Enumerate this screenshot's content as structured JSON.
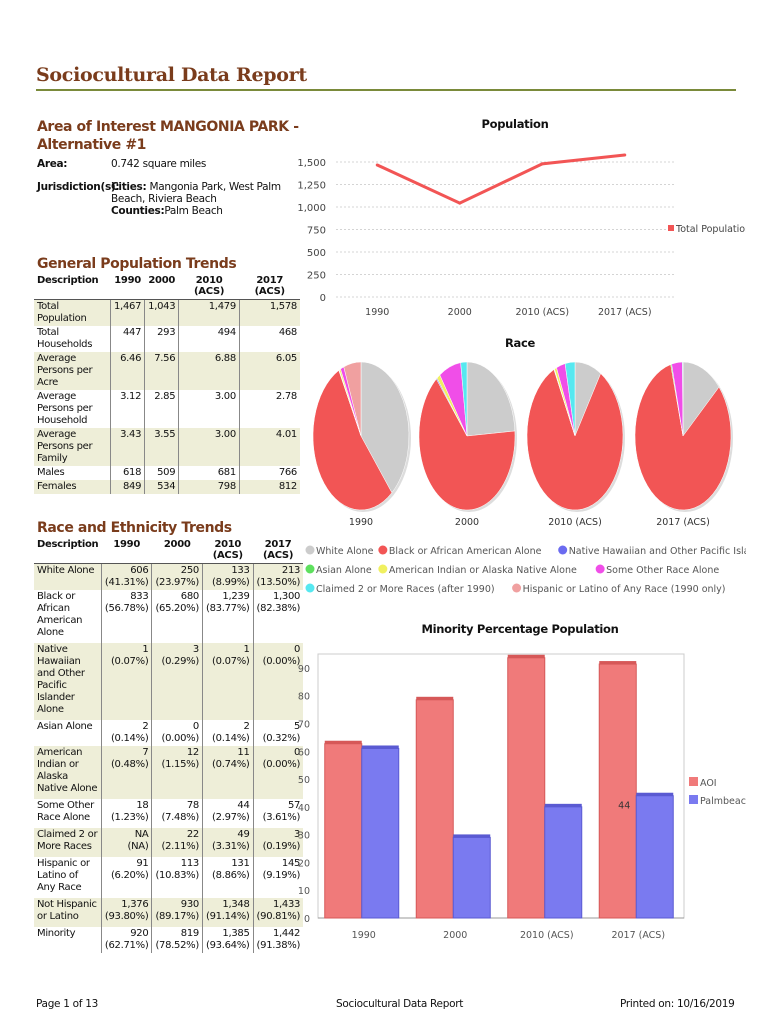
{
  "title": "Sociocultural Data Report",
  "area_of_interest": {
    "heading": "Area of Interest MANGONIA PARK - Alternative #1",
    "area_label": "Area:",
    "area_value": "0.742 square miles",
    "jurisdiction_label": "Jurisdiction(s):",
    "cities_label": "Cities:",
    "cities_value": "Mangonia Park, West Palm Beach, Riviera Beach",
    "counties_label": "Counties:",
    "counties_value": "Palm Beach"
  },
  "general": {
    "heading": "General Population Trends",
    "columns": [
      "Description",
      "1990",
      "2000",
      "2010 (ACS)",
      "2017 (ACS)"
    ],
    "rows": [
      {
        "label": "Total Population",
        "values": [
          "1,467",
          "1,043",
          "1,479",
          "1,578"
        ]
      },
      {
        "label": "Total Households",
        "values": [
          "447",
          "293",
          "494",
          "468"
        ]
      },
      {
        "label": "Average Persons per Acre",
        "values": [
          "6.46",
          "7.56",
          "6.88",
          "6.05"
        ]
      },
      {
        "label": "Average Persons per Household",
        "values": [
          "3.12",
          "2.85",
          "3.00",
          "2.78"
        ]
      },
      {
        "label": "Average Persons per Family",
        "values": [
          "3.43",
          "3.55",
          "3.00",
          "4.01"
        ]
      },
      {
        "label": "Males",
        "values": [
          "618",
          "509",
          "681",
          "766"
        ]
      },
      {
        "label": "Females",
        "values": [
          "849",
          "534",
          "798",
          "812"
        ]
      }
    ]
  },
  "race": {
    "heading": "Race and Ethnicity Trends",
    "columns": [
      "Description",
      "1990",
      "2000",
      "2010 (ACS)",
      "2017 (ACS)"
    ],
    "rows": [
      {
        "label": "White Alone",
        "values": [
          [
            "606",
            "(41.31%)"
          ],
          [
            "250",
            "(23.97%)"
          ],
          [
            "133",
            "(8.99%)"
          ],
          [
            "213",
            "(13.50%)"
          ]
        ]
      },
      {
        "label": "Black or African American Alone",
        "values": [
          [
            "833",
            "(56.78%)"
          ],
          [
            "680",
            "(65.20%)"
          ],
          [
            "1,239",
            "(83.77%)"
          ],
          [
            "1,300",
            "(82.38%)"
          ]
        ]
      },
      {
        "label": "Native Hawaiian and Other Pacific Islander Alone",
        "values": [
          [
            "1",
            "(0.07%)"
          ],
          [
            "3",
            "(0.29%)"
          ],
          [
            "1",
            "(0.07%)"
          ],
          [
            "0",
            "(0.00%)"
          ]
        ]
      },
      {
        "label": "Asian Alone",
        "values": [
          [
            "2",
            "(0.14%)"
          ],
          [
            "0",
            "(0.00%)"
          ],
          [
            "2",
            "(0.14%)"
          ],
          [
            "5",
            "(0.32%)"
          ]
        ]
      },
      {
        "label": "American Indian or Alaska Native Alone",
        "values": [
          [
            "7",
            "(0.48%)"
          ],
          [
            "12",
            "(1.15%)"
          ],
          [
            "11",
            "(0.74%)"
          ],
          [
            "0",
            "(0.00%)"
          ]
        ]
      },
      {
        "label": "Some Other Race Alone",
        "values": [
          [
            "18",
            "(1.23%)"
          ],
          [
            "78",
            "(7.48%)"
          ],
          [
            "44",
            "(2.97%)"
          ],
          [
            "57",
            "(3.61%)"
          ]
        ]
      },
      {
        "label": "Claimed 2 or More Races",
        "values": [
          [
            "NA",
            "(NA)"
          ],
          [
            "22",
            "(2.11%)"
          ],
          [
            "49",
            "(3.31%)"
          ],
          [
            "3",
            "(0.19%)"
          ]
        ]
      },
      {
        "label": "Hispanic or Latino of Any Race",
        "values": [
          [
            "91",
            "(6.20%)"
          ],
          [
            "113",
            "(10.83%)"
          ],
          [
            "131",
            "(8.86%)"
          ],
          [
            "145",
            "(9.19%)"
          ]
        ]
      },
      {
        "label": "Not Hispanic or Latino",
        "values": [
          [
            "1,376",
            "(93.80%)"
          ],
          [
            "930",
            "(89.17%)"
          ],
          [
            "1,348",
            "(91.14%)"
          ],
          [
            "1,433",
            "(90.81%)"
          ]
        ]
      },
      {
        "label": "Minority",
        "values": [
          [
            "920",
            "(62.71%)"
          ],
          [
            "819",
            "(78.52%)"
          ],
          [
            "1,385",
            "(93.64%)"
          ],
          [
            "1,442",
            "(91.38%)"
          ]
        ]
      }
    ]
  },
  "colors": {
    "accent": "#7a3c1c",
    "rule": "#7a8a3a",
    "shade": "#eeeed8",
    "white_alone": "#cccccc",
    "black_alone": "#f25555",
    "native_hawaiian": "#6b6bf0",
    "asian": "#5ee05e",
    "american_indian": "#f0f060",
    "other_race": "#f04ee8",
    "two_or_more": "#56e8f0",
    "hispanic": "#f0a0a0",
    "aoi_bar": "#f07a7a",
    "palmbeach_bar": "#7a7af0"
  },
  "chart_data": [
    {
      "type": "line",
      "title": "Population",
      "categories": [
        "1990",
        "2000",
        "2010 (ACS)",
        "2017 (ACS)"
      ],
      "series": [
        {
          "name": "Total Population",
          "values": [
            1467,
            1043,
            1479,
            1578
          ]
        }
      ],
      "yticks": [
        "0",
        "250",
        "500",
        "750",
        "1,000",
        "1,250",
        "1,500"
      ],
      "ylim": [
        0,
        1600
      ],
      "legend": "right"
    },
    {
      "type": "pie",
      "title": "Race",
      "categories": [
        "1990",
        "2000",
        "2010 (ACS)",
        "2017 (ACS)"
      ],
      "legend_entries": [
        "White Alone",
        "Black or African American Alone",
        "Native Hawaiian and Other Pacific Islander Alone",
        "Asian Alone",
        "American Indian or Alaska Native Alone",
        "Some Other Race Alone",
        "Claimed 2 or More Races (after 1990)",
        "Hispanic or Latino of Any Race (1990 only)"
      ],
      "pies": [
        {
          "label": "1990",
          "slices": [
            41.31,
            56.78,
            0.07,
            0.14,
            0.48,
            1.23,
            0,
            6.2
          ]
        },
        {
          "label": "2000",
          "slices": [
            23.97,
            65.2,
            0.29,
            0.0,
            1.15,
            7.48,
            2.11,
            0
          ]
        },
        {
          "label": "2010 (ACS)",
          "slices": [
            8.99,
            83.77,
            0.07,
            0.14,
            0.74,
            2.97,
            3.31,
            0
          ]
        },
        {
          "label": "2017 (ACS)",
          "slices": [
            13.5,
            82.38,
            0.0,
            0.32,
            0.0,
            3.61,
            0.19,
            0
          ]
        }
      ]
    },
    {
      "type": "bar",
      "title": "Minority Percentage Population",
      "categories": [
        "1990",
        "2000",
        "2010 (ACS)",
        "2017 (ACS)"
      ],
      "series": [
        {
          "name": "AOI",
          "values": [
            62.71,
            78.52,
            93.64,
            91.38
          ]
        },
        {
          "name": "Palmbeach",
          "values": [
            61,
            29,
            40,
            44
          ]
        }
      ],
      "annotation": "44",
      "yticks": [
        "0",
        "10",
        "20",
        "30",
        "40",
        "50",
        "60",
        "70",
        "80",
        "90"
      ],
      "ylim": [
        0,
        95
      ],
      "legend": "right"
    }
  ],
  "footer": {
    "page": "Page 1 of 13",
    "center": "Sociocultural Data Report",
    "printed": "Printed on: 10/16/2019"
  }
}
